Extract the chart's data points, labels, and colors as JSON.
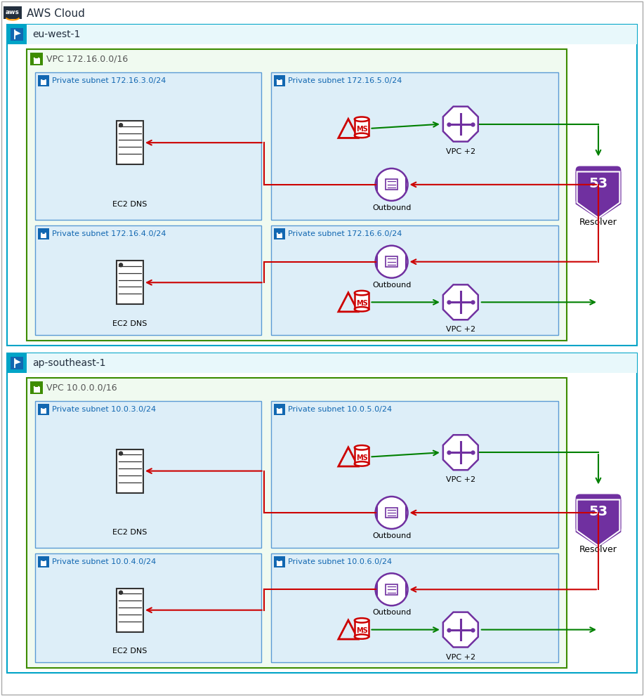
{
  "aws_cloud_label": "AWS Cloud",
  "regions": [
    {
      "name": "eu-west-1",
      "vpc_label": "VPC 172.16.0.0/16",
      "subnets_left": [
        "Private subnet 172.16.3.0/24",
        "Private subnet 172.16.4.0/24"
      ],
      "subnets_right_top": "Private subnet 172.16.5.0/24",
      "subnets_right_bot": "Private subnet 172.16.6.0/24",
      "resolver_label": "Resolver"
    },
    {
      "name": "ap-southeast-1",
      "vpc_label": "VPC 10.0.0.0/16",
      "subnets_left": [
        "Private subnet 10.0.3.0/24",
        "Private subnet 10.0.4.0/24"
      ],
      "subnets_right_top": "Private subnet 10.0.5.0/24",
      "subnets_right_bot": "Private subnet 10.0.6.0/24",
      "resolver_label": "Resolver"
    }
  ],
  "colors": {
    "page_bg": "#ffffff",
    "outer_border": "#aaaaaa",
    "region_border": "#00a4c7",
    "region_bg": "#ffffff",
    "region_hdr_bg": "#e8f8fb",
    "vpc_border": "#3d8c00",
    "vpc_bg": "#f0faf0",
    "subnet_border": "#5b9bd5",
    "subnet_bg": "#ddeef8",
    "subnet_hdr_color": "#1167b1",
    "lock_blue_bg": "#1167b1",
    "lock_green_bg": "#3d8c00",
    "ec2_fill": "#ffffff",
    "ec2_stroke": "#333333",
    "ms_red": "#cc0000",
    "eni_purple": "#7030a0",
    "resolver_purple": "#7030a0",
    "arrow_red": "#cc0000",
    "arrow_green": "#008000",
    "text_dark": "#232f3e",
    "flag_blue": "#1167b1"
  }
}
